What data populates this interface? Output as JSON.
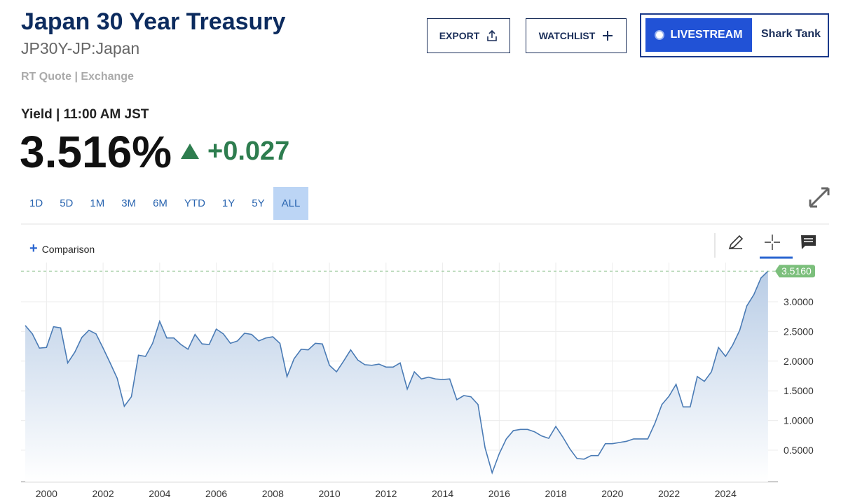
{
  "header": {
    "title": "Japan 30 Year Treasury",
    "symbol": "JP30Y-JP:Japan",
    "source": "RT Quote | Exchange",
    "buttons": [
      "EXPORT",
      "WATCHLIST",
      "LIVESTREAM",
      "Shark Tank"
    ]
  },
  "quote": {
    "label": "Yield | 11:00 AM JST",
    "price": "3.516%",
    "change": "+0.027"
  },
  "toolbar": {
    "ranges": [
      "1D",
      "5D",
      "1M",
      "3M",
      "6M",
      "YTD",
      "1Y",
      "5Y",
      "ALL"
    ],
    "active_range": 8,
    "comparison": "Comparison"
  },
  "chart_data": {
    "type": "area",
    "color": "#4a7bb5",
    "grid": true,
    "x": [
      1999.25,
      1999.5,
      1999.75,
      2000,
      2000.25,
      2000.5,
      2000.75,
      2001,
      2001.25,
      2001.5,
      2001.75,
      2002,
      2002.25,
      2002.5,
      2002.75,
      2003,
      2003.25,
      2003.5,
      2003.75,
      2004,
      2004.25,
      2004.5,
      2004.75,
      2005,
      2005.25,
      2005.5,
      2005.75,
      2006,
      2006.25,
      2006.5,
      2006.75,
      2007,
      2007.25,
      2007.5,
      2007.75,
      2008,
      2008.25,
      2008.5,
      2008.75,
      2009,
      2009.25,
      2009.5,
      2009.75,
      2010,
      2010.25,
      2010.5,
      2010.75,
      2011,
      2011.25,
      2011.5,
      2011.75,
      2012,
      2012.25,
      2012.5,
      2012.75,
      2013,
      2013.25,
      2013.5,
      2013.75,
      2014,
      2014.25,
      2014.5,
      2014.75,
      2015,
      2015.25,
      2015.5,
      2015.75,
      2016,
      2016.25,
      2016.5,
      2016.75,
      2017,
      2017.25,
      2017.5,
      2017.75,
      2018,
      2018.25,
      2018.5,
      2018.75,
      2019,
      2019.25,
      2019.5,
      2019.75,
      2020,
      2020.25,
      2020.5,
      2020.75,
      2021,
      2021.25,
      2021.5,
      2021.75,
      2022,
      2022.25,
      2022.5,
      2022.75,
      2023,
      2023.25,
      2023.5,
      2023.75,
      2024,
      2024.25,
      2024.5,
      2024.75,
      2025,
      2025.25,
      2025.5
    ],
    "values": [
      2.6,
      2.46,
      2.22,
      2.23,
      2.58,
      2.56,
      1.97,
      2.15,
      2.4,
      2.52,
      2.46,
      2.22,
      1.97,
      1.71,
      1.24,
      1.4,
      2.1,
      2.08,
      2.3,
      2.67,
      2.39,
      2.39,
      2.28,
      2.2,
      2.45,
      2.29,
      2.28,
      2.54,
      2.46,
      2.3,
      2.34,
      2.47,
      2.45,
      2.34,
      2.39,
      2.41,
      2.3,
      1.74,
      2.04,
      2.2,
      2.19,
      2.3,
      2.29,
      1.93,
      1.82,
      2.0,
      2.19,
      2.02,
      1.94,
      1.93,
      1.95,
      1.9,
      1.9,
      1.97,
      1.53,
      1.82,
      1.7,
      1.73,
      1.7,
      1.69,
      1.7,
      1.35,
      1.42,
      1.4,
      1.27,
      0.54,
      0.12,
      0.44,
      0.69,
      0.83,
      0.85,
      0.85,
      0.81,
      0.74,
      0.7,
      0.9,
      0.72,
      0.52,
      0.36,
      0.35,
      0.41,
      0.41,
      0.61,
      0.61,
      0.63,
      0.65,
      0.69,
      0.69,
      0.69,
      0.95,
      1.27,
      1.41,
      1.61,
      1.23,
      1.23,
      1.74,
      1.66,
      1.82,
      2.23,
      2.08,
      2.27,
      2.52,
      2.93,
      3.12,
      3.4,
      3.516
    ],
    "xlim": [
      1999.1,
      2025.85
    ],
    "xticks": [
      2000,
      2002,
      2004,
      2006,
      2008,
      2010,
      2012,
      2014,
      2016,
      2018,
      2020,
      2022,
      2024
    ],
    "ylim": [
      -0.03,
      3.66
    ],
    "yticks": [
      {
        "value": 0.5,
        "label": "0.5000"
      },
      {
        "value": 1,
        "label": "1.0000"
      },
      {
        "value": 1.5,
        "label": "1.5000"
      },
      {
        "value": 2,
        "label": "2.0000"
      },
      {
        "value": 2.5,
        "label": "2.5000"
      },
      {
        "value": 3,
        "label": "3.0000"
      }
    ],
    "last_value": {
      "value": 3.516,
      "label": "3.5160"
    }
  }
}
